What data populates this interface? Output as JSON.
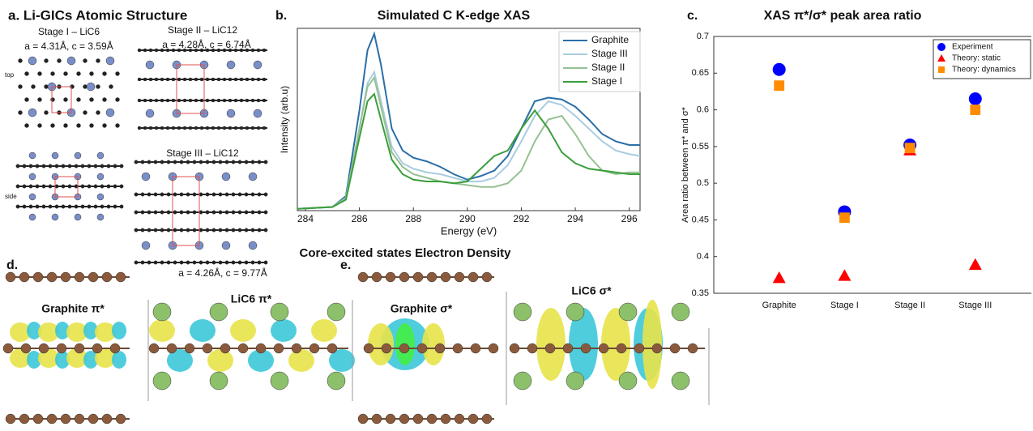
{
  "panel_a": {
    "label": "a. Li-GICs Atomic Structure",
    "stage1": "Stage I – LiC6",
    "stage1_params": "a = 4.31Å, c = 3.59Å",
    "stage2": "Stage II – LiC12",
    "stage2_params": "a = 4.28Å, c = 6.74Å",
    "stage3": "Stage III – LiC12",
    "stage3_params": "a = 4.26Å, c = 9.77Å",
    "top": "top",
    "side": "side"
  },
  "density": {
    "title": "Core-excited states Electron Density",
    "panel_d": "d.",
    "panel_e": "e.",
    "labels": [
      "Graphite π*",
      "LiC6 π*",
      "Graphite σ*",
      "LiC6 σ*"
    ]
  },
  "chart_data": [
    {
      "type": "line",
      "panel": "b.",
      "title": "Simulated C K-edge XAS",
      "x_label": "Energy (eV)",
      "y_label": "Intensity (arb.u)",
      "x": [
        283.7,
        285,
        285.5,
        286,
        286.3,
        286.55,
        286.8,
        287.2,
        287.6,
        288,
        288.5,
        289,
        289.5,
        290,
        290.5,
        291,
        291.5,
        292,
        292.5,
        293,
        293.5,
        294,
        294.5,
        295,
        295.5,
        296,
        296.4
      ],
      "xlim": [
        283.7,
        296.4
      ],
      "xticks": [
        284,
        286,
        288,
        290,
        292,
        294,
        296
      ],
      "ylim": [
        0,
        1
      ],
      "legend": "upper right",
      "series": [
        {
          "name": "Graphite",
          "color": "#2b6ea8",
          "values": [
            0.01,
            0.02,
            0.08,
            0.55,
            0.88,
            0.97,
            0.8,
            0.45,
            0.33,
            0.29,
            0.27,
            0.24,
            0.2,
            0.17,
            0.19,
            0.22,
            0.3,
            0.45,
            0.6,
            0.62,
            0.61,
            0.57,
            0.5,
            0.42,
            0.38,
            0.36,
            0.36
          ]
        },
        {
          "name": "Stage III",
          "color": "#a9cce0",
          "values": [
            0.01,
            0.02,
            0.07,
            0.45,
            0.7,
            0.76,
            0.6,
            0.35,
            0.26,
            0.23,
            0.21,
            0.2,
            0.18,
            0.16,
            0.16,
            0.18,
            0.25,
            0.38,
            0.52,
            0.6,
            0.58,
            0.52,
            0.45,
            0.38,
            0.33,
            0.31,
            0.3
          ]
        },
        {
          "name": "Stage II",
          "color": "#95c194",
          "values": [
            0.01,
            0.02,
            0.07,
            0.45,
            0.68,
            0.73,
            0.57,
            0.32,
            0.24,
            0.2,
            0.18,
            0.16,
            0.15,
            0.14,
            0.13,
            0.13,
            0.15,
            0.22,
            0.38,
            0.5,
            0.52,
            0.42,
            0.3,
            0.22,
            0.2,
            0.21,
            0.21
          ]
        },
        {
          "name": "Stage I",
          "color": "#3a9e3a",
          "values": [
            0.01,
            0.02,
            0.06,
            0.4,
            0.6,
            0.64,
            0.5,
            0.28,
            0.2,
            0.17,
            0.16,
            0.16,
            0.15,
            0.16,
            0.23,
            0.3,
            0.33,
            0.45,
            0.55,
            0.45,
            0.32,
            0.26,
            0.23,
            0.22,
            0.21,
            0.2,
            0.2
          ]
        }
      ]
    },
    {
      "type": "scatter",
      "panel": "c.",
      "title": "XAS π*/σ* peak area ratio",
      "y_label": "Area ratio between π* and σ*",
      "categories": [
        "Graphite",
        "Stage I",
        "Stage II",
        "Stage III"
      ],
      "ylim": [
        0.35,
        0.7
      ],
      "yticks": [
        0.35,
        0.4,
        0.45,
        0.5,
        0.55,
        0.6,
        0.65,
        0.7
      ],
      "legend": "upper right",
      "series": [
        {
          "name": "Experiment",
          "color": "#0000ff",
          "marker": "circle",
          "values": [
            0.655,
            0.461,
            0.552,
            0.615
          ]
        },
        {
          "name": "Theory: static",
          "color": "#ff0000",
          "marker": "triangle",
          "values": [
            0.371,
            0.374,
            0.545,
            0.389
          ]
        },
        {
          "name": "Theory: dynamics",
          "color": "#ff8c00",
          "marker": "square",
          "values": [
            0.633,
            0.453,
            0.548,
            0.6
          ]
        }
      ]
    }
  ]
}
